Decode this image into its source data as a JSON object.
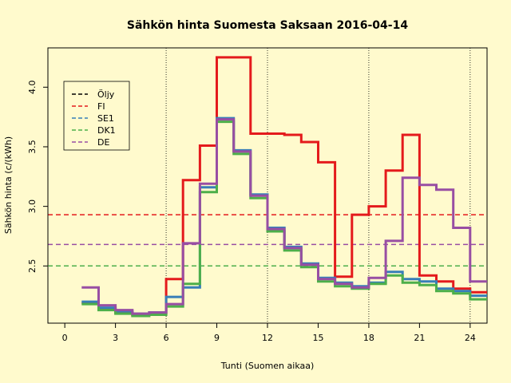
{
  "chart_data": {
    "type": "line",
    "title": "Sähkön hinta Suomesta Saksaan 2016-04-14",
    "xlabel": "Tunti (Suomen aikaa)",
    "ylabel": "Sähkön hinta (c/(kWh)",
    "xlim": [
      -1,
      25
    ],
    "ylim": [
      2.02,
      4.33
    ],
    "x_ticks": [
      0,
      3,
      6,
      9,
      12,
      15,
      18,
      21,
      24
    ],
    "y_ticks": [
      2.5,
      3.0,
      3.5,
      4.0
    ],
    "y_tick_labels": [
      "2.5",
      "3.0",
      "3.5",
      "4.0"
    ],
    "vertical_gridlines": [
      6,
      12,
      18,
      24
    ],
    "legend_position": "top-left",
    "hours": [
      1,
      2,
      3,
      4,
      5,
      6,
      7,
      8,
      9,
      10,
      11,
      12,
      13,
      14,
      15,
      16,
      17,
      18,
      19,
      20,
      21,
      22,
      23,
      24
    ],
    "series": [
      {
        "name": "Öljy",
        "color": "#000000",
        "values": []
      },
      {
        "name": "FI",
        "color": "#E41A1C",
        "values": [
          2.19,
          2.14,
          2.11,
          2.09,
          2.1,
          2.39,
          3.22,
          3.51,
          4.25,
          4.25,
          3.61,
          3.61,
          3.6,
          3.54,
          3.37,
          2.41,
          2.93,
          3.0,
          3.3,
          3.6,
          2.42,
          2.37,
          2.31,
          2.28
        ]
      },
      {
        "name": "SE1",
        "color": "#377EB8",
        "values": [
          2.2,
          2.15,
          2.12,
          2.1,
          2.11,
          2.24,
          2.32,
          3.16,
          3.74,
          3.47,
          3.1,
          2.82,
          2.66,
          2.52,
          2.4,
          2.36,
          2.33,
          2.36,
          2.45,
          2.39,
          2.37,
          2.31,
          2.29,
          2.25
        ]
      },
      {
        "name": "DK1",
        "color": "#4DAF4A",
        "values": [
          2.18,
          2.13,
          2.1,
          2.08,
          2.09,
          2.16,
          2.35,
          3.12,
          3.71,
          3.44,
          3.07,
          2.79,
          2.63,
          2.49,
          2.37,
          2.33,
          2.31,
          2.35,
          2.42,
          2.36,
          2.34,
          2.29,
          2.27,
          2.22
        ]
      },
      {
        "name": "DE",
        "color": "#984EA3",
        "values": [
          2.32,
          2.17,
          2.13,
          2.1,
          2.11,
          2.18,
          2.69,
          3.19,
          3.73,
          3.46,
          3.09,
          2.81,
          2.65,
          2.51,
          2.39,
          2.35,
          2.32,
          2.4,
          2.71,
          3.24,
          3.18,
          3.14,
          2.82,
          2.37
        ]
      }
    ],
    "reference_lines": [
      {
        "series": "FI",
        "color": "#E41A1C",
        "y": 2.93
      },
      {
        "series": "DE",
        "color": "#984EA3",
        "y": 2.68
      },
      {
        "series": "DK1",
        "color": "#4DAF4A",
        "y": 2.5
      }
    ]
  }
}
